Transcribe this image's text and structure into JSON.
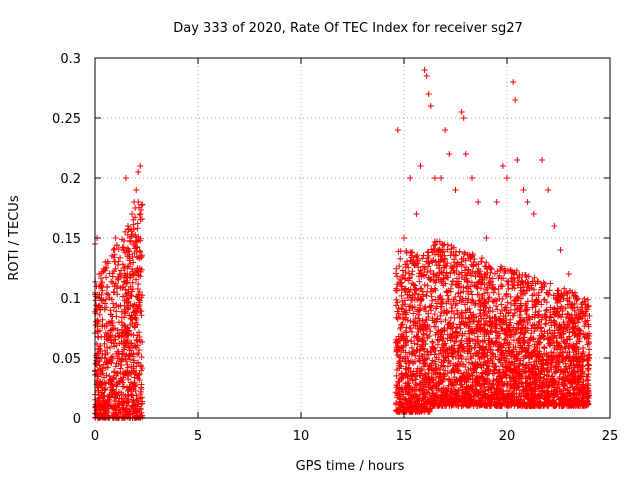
{
  "chart_data": {
    "type": "scatter",
    "title": "Day 333 of 2020, Rate Of TEC Index for receiver sg27",
    "xlabel": "GPS time / hours",
    "ylabel": "ROTI / TECUs",
    "xlim": [
      0,
      25
    ],
    "ylim": [
      0,
      0.3
    ],
    "x_ticks": [
      0,
      5,
      10,
      15,
      20,
      25
    ],
    "x_tick_labels": [
      "0",
      "5",
      "10",
      "15",
      "20",
      "25"
    ],
    "y_ticks": [
      0,
      0.05,
      0.1,
      0.15,
      0.2,
      0.25,
      0.3
    ],
    "y_tick_labels": [
      "0",
      "0.05",
      "0.1",
      "0.15",
      "0.2",
      "0.25",
      "0.3"
    ],
    "grid": true,
    "marker": "plus",
    "color": "#ff0000",
    "series": [
      {
        "values": [
          [
            0.0,
            0.145
          ],
          [
            0.1,
            0.15
          ],
          [
            0.2,
            0.12
          ],
          [
            0.3,
            0.11
          ],
          [
            0.5,
            0.13
          ],
          [
            0.7,
            0.1
          ],
          [
            0.9,
            0.14
          ],
          [
            1.0,
            0.15
          ],
          [
            1.2,
            0.12
          ],
          [
            1.4,
            0.14
          ],
          [
            1.5,
            0.2
          ],
          [
            1.6,
            0.16
          ],
          [
            1.7,
            0.15
          ],
          [
            1.8,
            0.17
          ],
          [
            1.9,
            0.18
          ],
          [
            2.0,
            0.19
          ],
          [
            2.1,
            0.205
          ],
          [
            2.2,
            0.21
          ],
          [
            2.1,
            0.18
          ],
          [
            1.95,
            0.175
          ],
          [
            14.7,
            0.24
          ],
          [
            15.0,
            0.15
          ],
          [
            15.3,
            0.2
          ],
          [
            15.6,
            0.17
          ],
          [
            15.8,
            0.21
          ],
          [
            16.0,
            0.29
          ],
          [
            16.1,
            0.285
          ],
          [
            16.2,
            0.27
          ],
          [
            16.3,
            0.26
          ],
          [
            16.5,
            0.2
          ],
          [
            16.8,
            0.2
          ],
          [
            17.0,
            0.24
          ],
          [
            17.2,
            0.22
          ],
          [
            17.5,
            0.19
          ],
          [
            17.8,
            0.255
          ],
          [
            17.9,
            0.25
          ],
          [
            18.0,
            0.22
          ],
          [
            18.3,
            0.2
          ],
          [
            18.6,
            0.18
          ],
          [
            19.0,
            0.15
          ],
          [
            19.5,
            0.18
          ],
          [
            19.8,
            0.21
          ],
          [
            20.0,
            0.2
          ],
          [
            20.3,
            0.28
          ],
          [
            20.4,
            0.265
          ],
          [
            20.5,
            0.215
          ],
          [
            20.8,
            0.19
          ],
          [
            21.0,
            0.18
          ],
          [
            21.3,
            0.17
          ],
          [
            21.7,
            0.215
          ],
          [
            22.0,
            0.19
          ],
          [
            22.3,
            0.16
          ],
          [
            22.6,
            0.14
          ],
          [
            23.0,
            0.12
          ],
          [
            23.4,
            0.1
          ],
          [
            23.8,
            0.095
          ],
          [
            24.0,
            0.085
          ]
        ]
      }
    ],
    "dense_regions": [
      {
        "x": [
          0.0,
          2.3
        ],
        "y_low": 0.0,
        "y_high_start": 0.12,
        "y_high_end": 0.18
      },
      {
        "x": [
          14.6,
          16.3
        ],
        "y_low": 0.005,
        "y_high_start": 0.14,
        "y_high_end": 0.14
      },
      {
        "x": [
          16.3,
          24.0
        ],
        "y_low": 0.01,
        "y_high_start": 0.15,
        "y_high_end": 0.1
      }
    ]
  }
}
